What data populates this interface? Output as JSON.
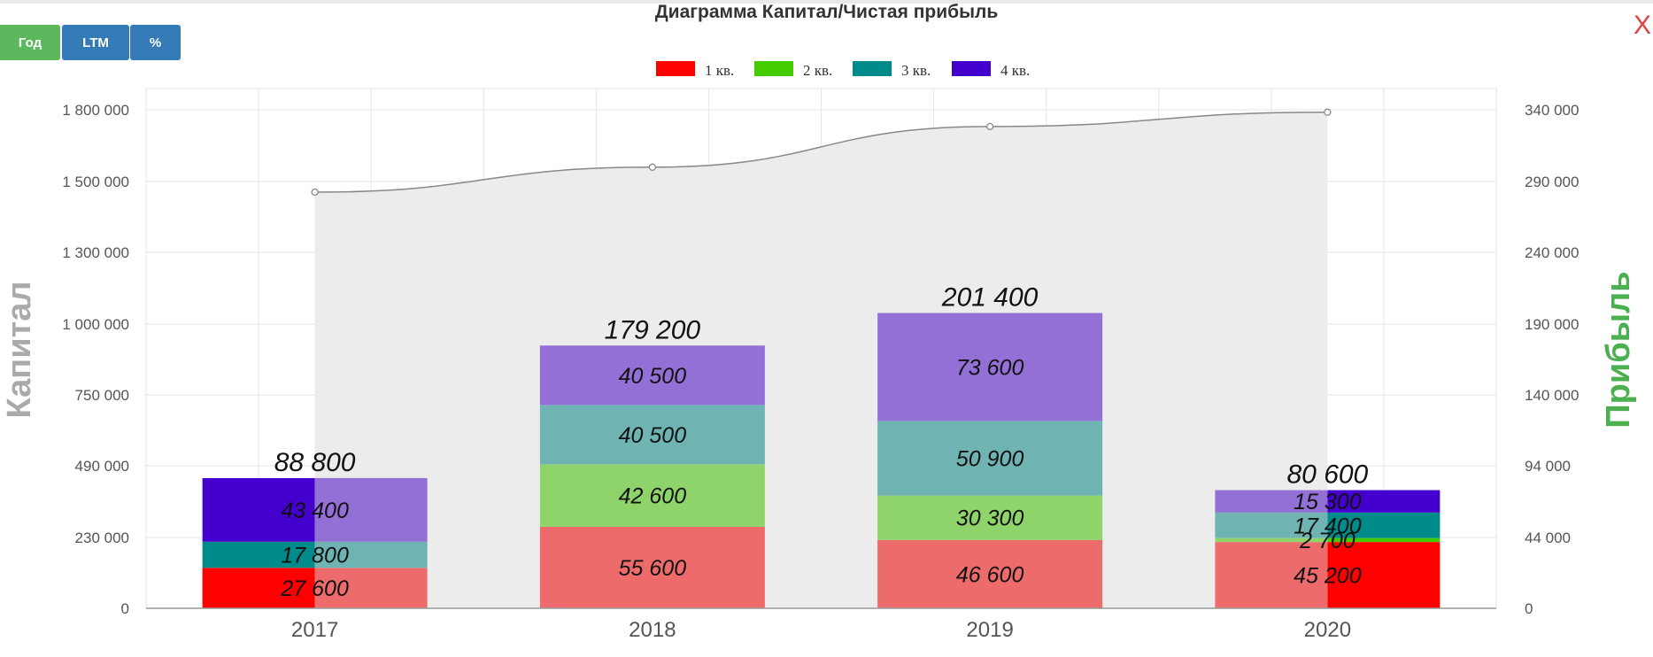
{
  "buttons": {
    "year": "Год",
    "ltm": "LTM",
    "percent": "%"
  },
  "close_glyph": "X",
  "colors": {
    "q1": "#ff0000",
    "q2": "#44cc00",
    "q3": "#008b8b",
    "q4": "#4400cc",
    "q1_light": "#ee6b6b",
    "q2_light": "#8fd46b",
    "q3_light": "#6fb3b3",
    "q4_light": "#9370d6",
    "right_axis_label": "#4caf50",
    "left_axis_label": "#aaaaaa",
    "line": "#888888",
    "area": "#ececec"
  },
  "chart_data": {
    "type": "bar",
    "title": "Диаграмма Капитал/Чистая прибыль",
    "ylabel": "Капитал",
    "y2label": "Прибыль",
    "categories": [
      "2017",
      "2018",
      "2019",
      "2020"
    ],
    "yticks": [
      "0",
      "230 000",
      "490 000",
      "750 000",
      "1 000 000",
      "1 300 000",
      "1 500 000",
      "1 800 000"
    ],
    "y2ticks": [
      "0",
      "44 000",
      "94 000",
      "140 000",
      "190 000",
      "240 000",
      "290 000",
      "340 000"
    ],
    "legend_position": "top-center",
    "grid": true,
    "series": [
      {
        "name": "1 кв.",
        "values": [
          27600,
          55600,
          46600,
          45200
        ],
        "labels": [
          "27 600",
          "55 600",
          "46 600",
          "45 200"
        ]
      },
      {
        "name": "2 кв.",
        "values": [
          0,
          42600,
          30300,
          2700
        ],
        "labels": [
          "",
          "42 600",
          "30 300",
          "2 700"
        ]
      },
      {
        "name": "3 кв.",
        "values": [
          17800,
          40500,
          50900,
          17400
        ],
        "labels": [
          "17 800",
          "40 500",
          "50 900",
          "17 400"
        ]
      },
      {
        "name": "4 кв.",
        "values": [
          43400,
          40500,
          73600,
          15300
        ],
        "labels": [
          "43 400",
          "40 500",
          "73 600",
          "15 300"
        ]
      }
    ],
    "totals": [
      "88 800",
      "179 200",
      "201 400",
      "80 600"
    ],
    "capital_series": {
      "values": [
        1470000,
        1560000,
        1730000,
        1790000
      ]
    },
    "highlight_split": [
      {
        "year": "2017",
        "quarters": [
          "1 кв.",
          "3 кв.",
          "4 кв."
        ],
        "note": "left half saturated"
      },
      {
        "year": "2020",
        "quarters": [
          "1 кв.",
          "2 кв.",
          "3 кв.",
          "4 кв."
        ],
        "note": "right half saturated"
      }
    ]
  }
}
